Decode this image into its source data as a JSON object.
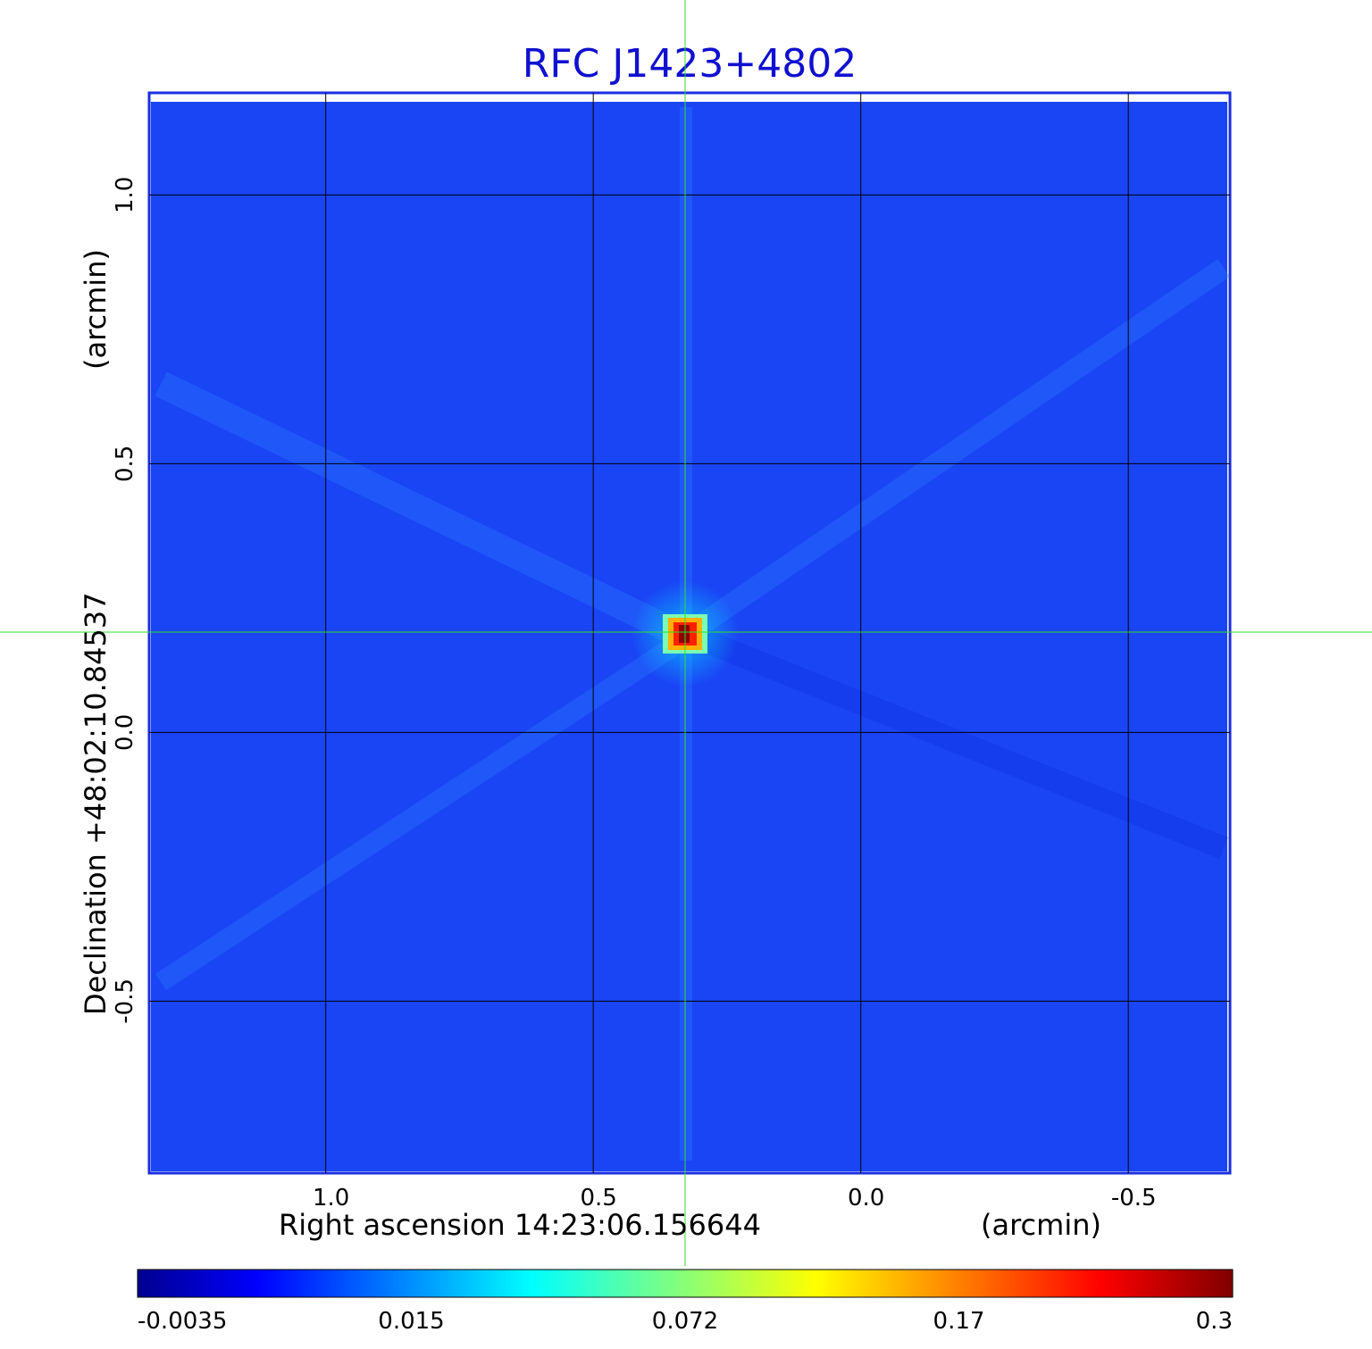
{
  "title": "RFC J1423+4802",
  "chart_data": {
    "type": "heatmap",
    "title": "RFC J1423+4802",
    "xlabel_text": "Right ascension  14:23:06.156644",
    "xlabel_unit": "(arcmin)",
    "ylabel_text": "Declination  +48:02:10.84537",
    "ylabel_unit": "(arcmin)",
    "x_ticks": [
      1.0,
      0.5,
      0.0,
      -0.5
    ],
    "x_tick_labels": [
      "1.0",
      "0.5",
      "0.0",
      "-0.5"
    ],
    "y_ticks": [
      1.0,
      0.5,
      0.0,
      -0.5
    ],
    "y_tick_labels": [
      "1.0",
      "0.5",
      "0.0",
      "-0.5"
    ],
    "xlim": [
      1.33,
      -0.69
    ],
    "ylim": [
      -0.82,
      1.19
    ],
    "grid": true,
    "source_position": {
      "x": 0.33,
      "y": 0.185
    },
    "peak_value": 0.3,
    "background_value": 0.005,
    "colorbar": {
      "colormap": "jet",
      "ticks": [
        -0.0035,
        0.015,
        0.072,
        0.17,
        0.3
      ],
      "tick_labels": [
        "-0.0035",
        "0.015",
        "0.072",
        "0.17",
        "0.3"
      ]
    }
  },
  "colors": {
    "title": "#1010d0",
    "axes_frame": "#1a2ee0",
    "background_map": "#1a45f5",
    "grid": "#000000",
    "crosshair": "#33dd33"
  }
}
